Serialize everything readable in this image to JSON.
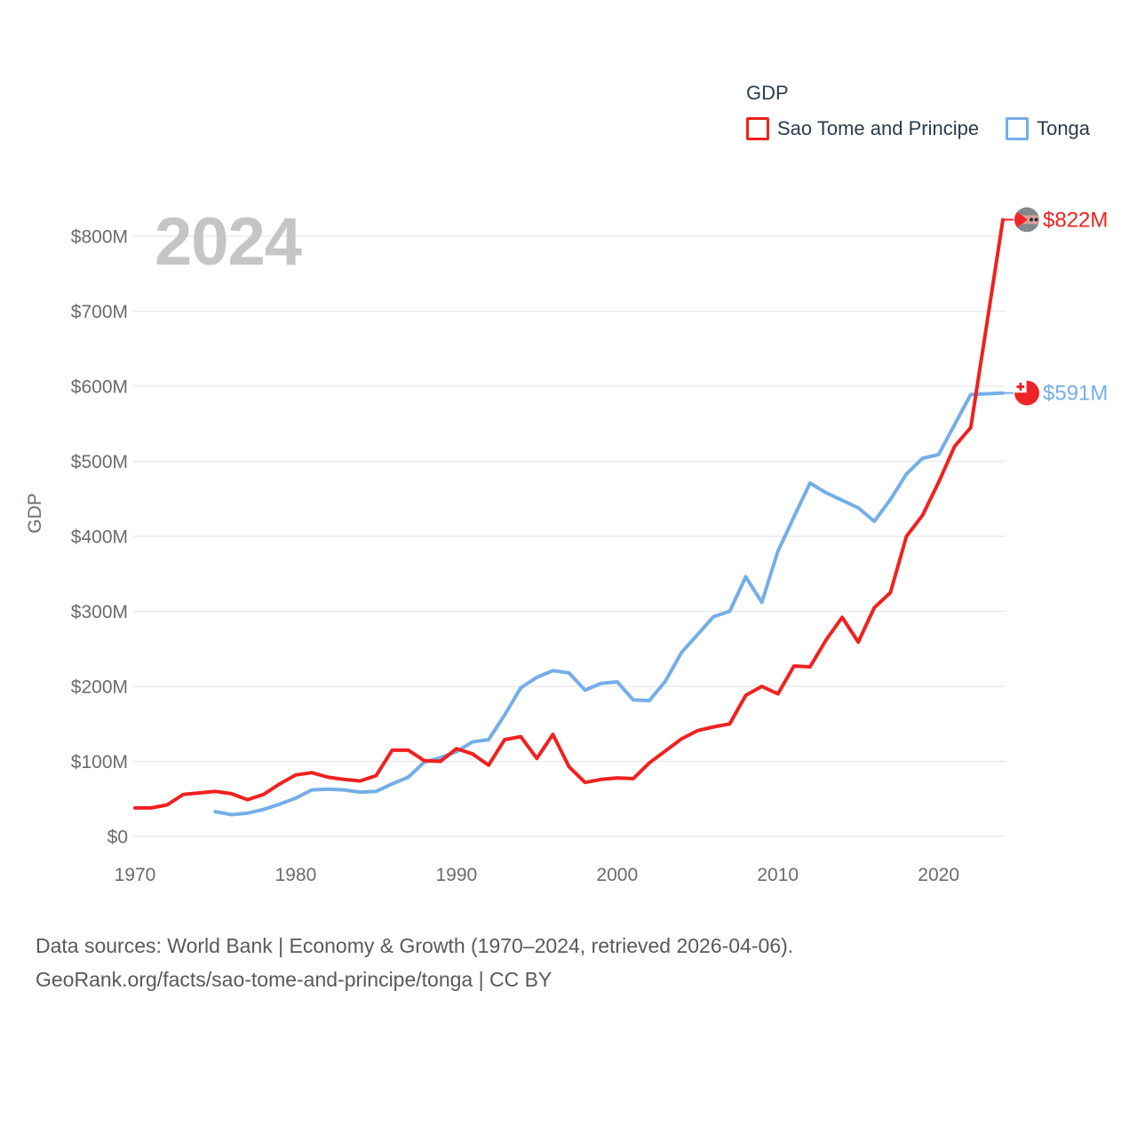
{
  "legend": {
    "title": "GDP",
    "items": [
      {
        "label": "Sao Tome and Principe",
        "color": "#f0211f"
      },
      {
        "label": "Tonga",
        "color": "#74aee9"
      }
    ]
  },
  "watermark_year": "2024",
  "footer": {
    "line1": "Data sources: World Bank | Economy & Growth (1970–2024, retrieved 2026-04-06).",
    "line2": "GeoRank.org/facts/sao-tome-and-principe/tonga | CC BY"
  },
  "chart_data": {
    "type": "line",
    "title": "GDP",
    "xlabel": "",
    "ylabel": "GDP",
    "unit": "USD, millions",
    "grid": true,
    "legend_position": "top-right",
    "xlim": [
      1970,
      2024
    ],
    "ylim_musd": [
      0,
      842
    ],
    "x_ticks": [
      {
        "label": "1970",
        "year": 1970
      },
      {
        "label": "1980",
        "year": 1980
      },
      {
        "label": "1990",
        "year": 1990
      },
      {
        "label": "2000",
        "year": 2000
      },
      {
        "label": "2010",
        "year": 2010
      },
      {
        "label": "2020",
        "year": 2020
      }
    ],
    "y_ticks": [
      {
        "label": "$0",
        "value_musd": 0
      },
      {
        "label": "$100M",
        "value_musd": 100
      },
      {
        "label": "$200M",
        "value_musd": 200
      },
      {
        "label": "$300M",
        "value_musd": 300
      },
      {
        "label": "$400M",
        "value_musd": 400
      },
      {
        "label": "$500M",
        "value_musd": 500
      },
      {
        "label": "$600M",
        "value_musd": 600
      },
      {
        "label": "$700M",
        "value_musd": 700
      },
      {
        "label": "$800M",
        "value_musd": 800
      }
    ],
    "series": [
      {
        "name": "Tonga",
        "color": "#74aee9",
        "flag": "tonga-flag",
        "end_label": "$591M",
        "start_year": 1975,
        "values_musd": [
          33,
          29,
          31,
          36,
          43,
          51,
          62,
          63,
          62,
          59,
          60,
          70,
          79,
          99,
          105,
          113,
          126,
          129,
          162,
          198,
          212,
          221,
          218,
          195,
          204,
          206,
          182,
          181,
          207,
          245,
          269,
          293,
          300,
          346,
          312,
          380,
          426,
          471,
          458,
          448,
          438,
          420,
          449,
          483,
          504,
          509,
          549,
          589,
          590,
          591
        ]
      },
      {
        "name": "Sao Tome and Principe",
        "color": "#f0211f",
        "flag": "sao-tome-flag",
        "end_label": "$822M",
        "start_year": 1970,
        "values_musd": [
          38,
          38,
          42,
          56,
          58,
          60,
          57,
          49,
          56,
          70,
          82,
          85,
          79,
          76,
          74,
          81,
          115,
          115,
          101,
          100,
          117,
          110,
          95,
          129,
          133,
          104,
          136,
          93,
          72,
          76,
          78,
          77,
          98,
          114,
          130,
          141,
          146,
          150,
          188,
          200,
          190,
          227,
          226,
          262,
          292,
          259,
          305,
          325,
          400,
          428,
          472,
          520,
          545,
          683,
          822
        ]
      }
    ]
  }
}
